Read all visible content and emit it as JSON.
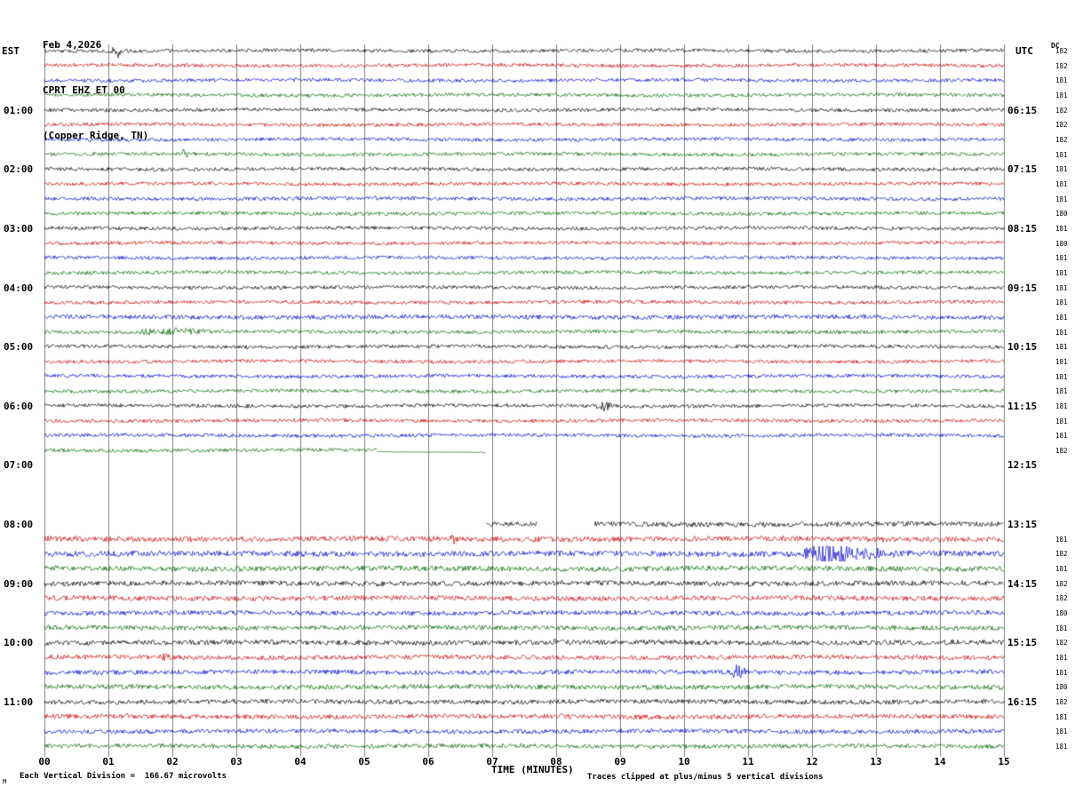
{
  "header": {
    "date": "Feb 4,2026",
    "station_line": "CPRT EHZ ET 00",
    "location_line": "(Copper Ridge, TN)"
  },
  "axes": {
    "left_tz": "EST",
    "right_tz": "UTC",
    "dc_label": "DC",
    "x_title": "TIME (MINUTES)",
    "x_ticks": [
      "00",
      "01",
      "02",
      "03",
      "04",
      "05",
      "06",
      "07",
      "08",
      "09",
      "10",
      "11",
      "12",
      "13",
      "14",
      "15"
    ]
  },
  "footer": {
    "left_note": "Each Vertical Division =  166.67 microvolts",
    "right_note": "Traces clipped at plus/minus 5 vertical divisions",
    "corner_mark": "M"
  },
  "colors": {
    "background": "#ffffff",
    "grid": "#808080",
    "text": "#000000",
    "trace_cycle": [
      "#000000",
      "#cc0000",
      "#0000cc",
      "#006600"
    ]
  },
  "chart_data": {
    "type": "line",
    "kind": "helicorder-seismogram",
    "station": "CPRT",
    "channel": "EHZ",
    "network": "ET",
    "location_code": "00",
    "site": "Copper Ridge, TN",
    "date": "Feb 4,2026",
    "x_range_minutes": [
      0,
      15
    ],
    "minutes_per_line": 15,
    "rows_count": 48,
    "traces_per_hour": 4,
    "trace_color_names": [
      "black",
      "red",
      "blue",
      "green"
    ],
    "left_hour_labels": [
      "01:00",
      "02:00",
      "03:00",
      "04:00",
      "05:00",
      "06:00",
      "07:00",
      "08:00",
      "09:00",
      "10:00",
      "11:00"
    ],
    "right_hour_labels": [
      "06:15",
      "07:15",
      "08:15",
      "09:15",
      "10:15",
      "11:15",
      "12:15",
      "13:15",
      "14:15",
      "15:15",
      "16:15"
    ],
    "dc_values": [
      "182",
      "182",
      "181",
      "181",
      "182",
      "182",
      "182",
      "181",
      "181",
      "181",
      "181",
      "180",
      "181",
      "180",
      "181",
      "181",
      "181",
      "181",
      "181",
      "181",
      "181",
      "181",
      "181",
      "181",
      "181",
      "181",
      "181",
      "182",
      null,
      null,
      null,
      null,
      null,
      "181",
      "182",
      "181",
      "182",
      "182",
      "180",
      "181",
      "182",
      "181",
      "181",
      "180",
      "182",
      "181",
      "181",
      "181"
    ],
    "row_overrides": {
      "0": {
        "events": [
          {
            "at": 1.15,
            "width": 0.1,
            "amp": 4
          }
        ]
      },
      "4": {
        "events": [
          {
            "at": 9.1,
            "width": 0.08,
            "amp": 2.2
          }
        ]
      },
      "7": {
        "events": [
          {
            "at": 2.2,
            "width": 0.1,
            "amp": 3
          }
        ]
      },
      "18": {
        "amp": 1.25
      },
      "19": {
        "events": [
          {
            "at": 1.6,
            "width": 0.25,
            "amp": 2.2
          },
          {
            "at": 2.1,
            "width": 0.6,
            "amp": 2.4
          }
        ]
      },
      "24": {
        "events": [
          {
            "at": 8.75,
            "width": 0.12,
            "amp": 3.5
          }
        ]
      },
      "27": {
        "segments": [
          {
            "from": 0,
            "to": 5.2
          },
          {
            "from": 5.2,
            "to": 6.9,
            "amp": 0.2,
            "dy": 2
          }
        ]
      },
      "28": {
        "segments": []
      },
      "29": {
        "segments": []
      },
      "30": {
        "segments": []
      },
      "31": {
        "segments": []
      },
      "32": {
        "segments": [
          {
            "from": 6.9,
            "to": 7.7
          },
          {
            "from": 8.6,
            "to": 15
          }
        ],
        "amp": 1.4
      },
      "33": {
        "amp": 1.5,
        "events": [
          {
            "at": 6.4,
            "width": 0.08,
            "amp": 2.5
          }
        ]
      },
      "34": {
        "amp": 1.6,
        "events": [
          {
            "at": 12.3,
            "width": 0.45,
            "amp": 5
          },
          {
            "at": 13.0,
            "width": 0.4,
            "amp": 2.5
          }
        ]
      },
      "35": {
        "amp": 1.5
      },
      "36": {
        "amp": 1.4
      },
      "37": {
        "amp": 1.4
      },
      "38": {
        "amp": 1.3
      },
      "39": {
        "amp": 1.3
      },
      "40": {
        "amp": 1.4,
        "events": [
          {
            "at": 8.0,
            "width": 0.08,
            "amp": 2
          }
        ]
      },
      "41": {
        "amp": 1.3,
        "events": [
          {
            "at": 1.9,
            "width": 0.15,
            "amp": 2
          }
        ]
      },
      "42": {
        "amp": 1.3,
        "events": [
          {
            "at": 10.85,
            "width": 0.12,
            "amp": 4
          }
        ]
      },
      "43": {
        "amp": 1.3
      },
      "44": {
        "amp": 1.3
      },
      "45": {
        "amp": 1.3
      },
      "46": {
        "amp": 1.2
      },
      "47": {
        "amp": 1.2
      }
    }
  }
}
